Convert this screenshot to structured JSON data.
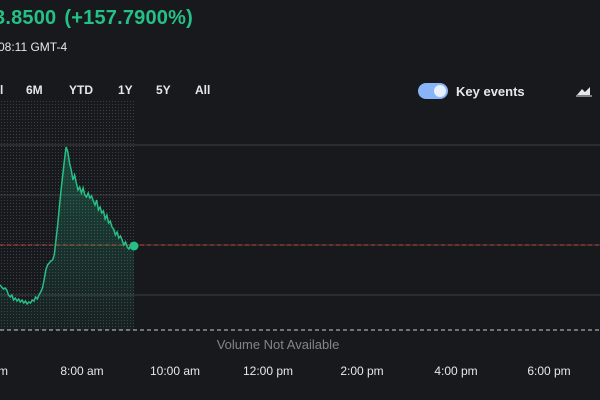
{
  "quote": {
    "price_fragment": "3.8500",
    "change": "(+157.7900%)",
    "timestamp": "08:11 GMT-4"
  },
  "range_tabs": [
    {
      "label": "l"
    },
    {
      "label": "6M"
    },
    {
      "label": "YTD"
    },
    {
      "label": "1Y"
    },
    {
      "label": "5Y"
    },
    {
      "label": "All"
    }
  ],
  "key_events": {
    "label": "Key events",
    "enabled": true
  },
  "chart_icon": "area-chart-icon",
  "volume_message": "Volume Not Available",
  "x_axis_labels": [
    "m",
    "8:00 am",
    "10:00 am",
    "12:00 pm",
    "2:00 pm",
    "4:00 pm",
    "6:00 pm"
  ],
  "colors": {
    "positive": "#25c086",
    "previous_close_line": "#d0453b",
    "toggle": "#8ab4f8",
    "background": "#17191d"
  },
  "chart_data": {
    "type": "area",
    "values": [
      1.0,
      0.98,
      0.96,
      0.97,
      0.95,
      0.9,
      0.88,
      0.9,
      0.85,
      0.87,
      0.84,
      0.86,
      0.83,
      0.85,
      0.82,
      0.84,
      0.81,
      0.83,
      0.82,
      0.85,
      0.84,
      0.88,
      0.86,
      0.9,
      0.93,
      0.97,
      1.05,
      1.15,
      1.2,
      1.22,
      1.24,
      1.25,
      1.3,
      1.45,
      1.6,
      1.78,
      1.95,
      2.1,
      2.25,
      2.38,
      2.33,
      2.22,
      2.15,
      2.05,
      2.1,
      2.02,
      1.95,
      1.98,
      1.92,
      1.97,
      1.9,
      1.88,
      1.92,
      1.87,
      1.89,
      1.84,
      1.8,
      1.85,
      1.75,
      1.78,
      1.72,
      1.74,
      1.66,
      1.7,
      1.62,
      1.64,
      1.58,
      1.56,
      1.5,
      1.53,
      1.47,
      1.49,
      1.45,
      1.4,
      1.43,
      1.38,
      1.36,
      1.4,
      1.37,
      1.39
    ],
    "previous_close": 1.4,
    "gridlines": [
      0.9,
      1.4,
      1.9,
      2.4
    ],
    "ylim": [
      0.55,
      2.85
    ],
    "line_color": "#25c086"
  }
}
